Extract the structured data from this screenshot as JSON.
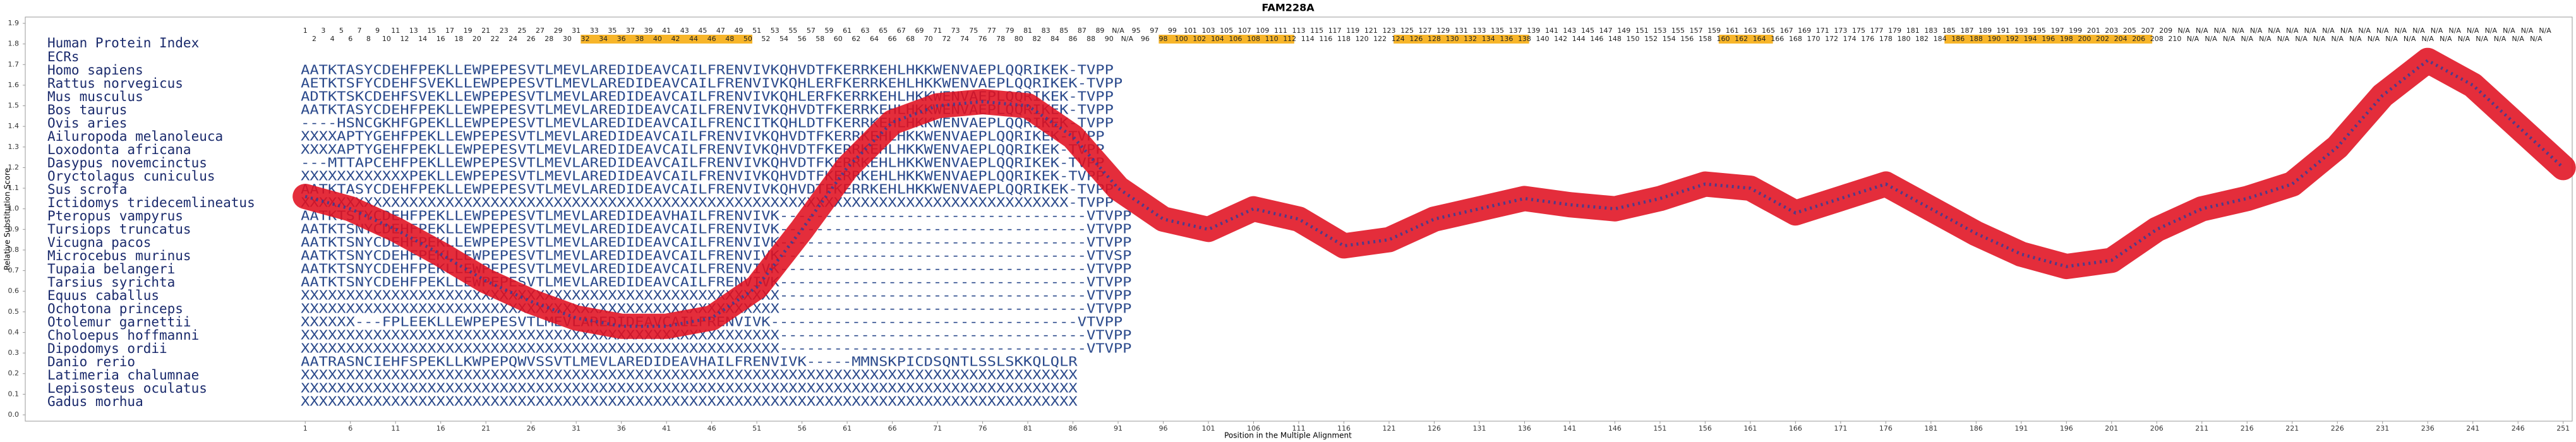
{
  "chart_data": {
    "type": "line",
    "title": "FAM228A",
    "xlabel": "Position in the Multiple Alignment",
    "ylabel": "Relative Substitution Score",
    "xlim": [
      -30,
      252
    ],
    "ylim": [
      0,
      1.9
    ],
    "xticks": [
      1,
      6,
      11,
      16,
      21,
      26,
      31,
      36,
      41,
      46,
      51,
      56,
      61,
      66,
      71,
      76,
      81,
      86,
      91,
      96,
      101,
      106,
      111,
      116,
      121,
      126,
      131,
      136,
      141,
      146,
      151,
      156,
      161,
      166,
      171,
      176,
      181,
      186,
      191,
      196,
      201,
      206,
      211,
      216,
      221,
      226,
      231,
      236,
      241,
      246,
      251
    ],
    "yticks": [
      {
        "value": 0,
        "label": "0.0"
      },
      0.1,
      0.2,
      0.3,
      0.4,
      0.5,
      0.6,
      0.7,
      0.8,
      0.9,
      {
        "value": 1,
        "label": "1.0"
      },
      1.1,
      1.2,
      1.3,
      1.4,
      1.5,
      1.6,
      1.7,
      1.8,
      1.9
    ],
    "x": [
      1,
      6,
      11,
      16,
      21,
      26,
      31,
      36,
      41,
      46,
      51,
      56,
      61,
      66,
      71,
      76,
      81,
      86,
      91,
      96,
      101,
      106,
      111,
      116,
      121,
      126,
      131,
      136,
      141,
      146,
      151,
      156,
      161,
      166,
      171,
      176,
      181,
      186,
      191,
      196,
      201,
      206,
      211,
      216,
      221,
      226,
      231,
      236,
      241,
      246,
      251
    ],
    "series": [
      {
        "color": "#e01020",
        "dot_color": "#2a3f9e",
        "values": [
          1.06,
          1.0,
          0.9,
          0.78,
          0.65,
          0.55,
          0.47,
          0.43,
          0.43,
          0.47,
          0.62,
          0.9,
          1.2,
          1.42,
          1.5,
          1.52,
          1.5,
          1.35,
          1.1,
          0.95,
          0.9,
          1.0,
          0.95,
          0.82,
          0.85,
          0.95,
          1.0,
          1.05,
          1.02,
          1.0,
          1.05,
          1.12,
          1.1,
          0.98,
          1.05,
          1.12,
          1.0,
          0.88,
          0.78,
          0.72,
          0.75,
          0.9,
          1.0,
          1.05,
          1.12,
          1.3,
          1.55,
          1.72,
          1.6,
          1.4,
          1.2
        ]
      }
    ],
    "index_label": "Human Protein Index",
    "ecr_label": "ECRs",
    "ecr_color": "#f7b52a",
    "ecrs": [
      [
        32,
        50
      ],
      [
        96,
        110
      ],
      [
        122,
        136
      ],
      [
        158,
        163
      ],
      [
        183,
        205
      ]
    ],
    "human_index": [
      1,
      2,
      3,
      4,
      5,
      6,
      7,
      8,
      9,
      10,
      11,
      12,
      13,
      14,
      15,
      16,
      17,
      18,
      19,
      20,
      21,
      22,
      23,
      24,
      25,
      26,
      27,
      28,
      29,
      30,
      31,
      32,
      33,
      34,
      35,
      36,
      37,
      38,
      39,
      40,
      41,
      42,
      43,
      44,
      45,
      46,
      47,
      48,
      49,
      50,
      51,
      52,
      53,
      54,
      55,
      56,
      57,
      58,
      59,
      60,
      61,
      62,
      63,
      64,
      65,
      66,
      67,
      68,
      69,
      70,
      71,
      72,
      73,
      74,
      75,
      76,
      77,
      78,
      79,
      80,
      81,
      82,
      83,
      84,
      85,
      86,
      87,
      88,
      89,
      90,
      "N/A",
      "N/A",
      95,
      96,
      97,
      98,
      99,
      100,
      101,
      102,
      103,
      104,
      105,
      106,
      107,
      108,
      109,
      110,
      111,
      112,
      113,
      114,
      115,
      116,
      117,
      118,
      119,
      120,
      121,
      122,
      123,
      124,
      125,
      126,
      127,
      128,
      129,
      130,
      131,
      132,
      133,
      134,
      135,
      136,
      137,
      138,
      139,
      140,
      141,
      142,
      143,
      144,
      145,
      146,
      147,
      148,
      149,
      150,
      151,
      152,
      153,
      154,
      155,
      156,
      157,
      158,
      159,
      160,
      161,
      162,
      163,
      164,
      165,
      166,
      167,
      168,
      169,
      170,
      171,
      172,
      173,
      174,
      175,
      176,
      177,
      178,
      179,
      180,
      181,
      182,
      183,
      184,
      185,
      186,
      187,
      188,
      189,
      190,
      191,
      192,
      193,
      194,
      195,
      196,
      197,
      198,
      199,
      200,
      201,
      202,
      203,
      204,
      205,
      206,
      207,
      208,
      209,
      210,
      "N/A",
      "N/A",
      "N/A",
      "N/A",
      "N/A",
      "N/A",
      "N/A",
      "N/A",
      "N/A",
      "N/A",
      "N/A",
      "N/A",
      "N/A",
      "N/A",
      "N/A",
      "N/A",
      "N/A",
      "N/A",
      "N/A",
      "N/A",
      "N/A",
      "N/A",
      "N/A",
      "N/A",
      "N/A",
      "N/A",
      "N/A",
      "N/A",
      "N/A",
      "N/A",
      "N/A",
      "N/A",
      "N/A",
      "N/A",
      "N/A",
      "N/A",
      "N/A",
      "N/A",
      "N/A",
      "N/A",
      "N/A"
    ],
    "alignment": [
      {
        "species": "Homo sapiens",
        "sequence": "AATKTASYCDEHFPEKLLEWPEPESVTLMEVLAREDIDEAVCAILFRENVIVKQHVDTFKERRKEHLHKKWENVAEPLQQRIKEK-TVPP"
      },
      {
        "species": "Rattus norvegicus",
        "sequence": "AETKTSFYCDEHFSVEKLLEWPEPESVTLMEVLAREDIDEAVCAILFRENVIVKQHLERFKERRKEHLHKKWENVAEPLQQRIKEK-TVPP"
      },
      {
        "species": "Mus musculus",
        "sequence": "ADTKTSKCDEHFSVEKLLEWPEPESVTLMEVLAREDIDEAVCAILFRENVIVKQHLERFKERRKEHLHKKWENVAEPLQQRIKEK-TVPP"
      },
      {
        "species": "Bos taurus",
        "sequence": "AATKTASYCDEHFPEKLLEWPEPESVTLMEVLAREDIDEAVCAILFRENVIVKQHVDTFKERRKEHLHKKWENVAEPLQQRIKEK-TVPP"
      },
      {
        "species": "Ovis aries",
        "sequence": "----HSNCGKHFGPEKLLEWPEPESVTLMEVLAREDIDEAVCAILFRENCITKQHLDTFKERRKEHLHKKWENVAEPLQQRIKEK-TVPP"
      },
      {
        "species": "Ailuropoda melanoleuca",
        "sequence": "XXXXAPTYGEHFPEKLLEWPEPESVTLMEVLAREDIDEAVCAILFRENVIVKQHVDTFKERRKEHLHKKWENVAEPLQQRIKEK-TVPP"
      },
      {
        "species": "Loxodonta africana",
        "sequence": "XXXXAPTYGEHFPEKLLEWPEPESVTLMEVLAREDIDEAVCAILFRENVIVKQHVDTFKERRKEHLHKKWENVAEPLQQRIKEK-TVPP"
      },
      {
        "species": "Dasypus novemcinctus",
        "sequence": "---MTTAPCEHFPEKLLEWPEPESVTLMEVLAREDIDEAVCAILFRENVIVKQHVDTFKERRKEHLHKKWENVAEPLQQRIKEK-TVPP"
      },
      {
        "species": "Oryctolagus cuniculus",
        "sequence": "XXXXXXXXXXXXPEKLLEWPEPESVTLMEVLAREDIDEAVCAILFRENVIVKQHVDTFKERRKEHLHKKWENVAEPLQQRIKEK-TVPP"
      },
      {
        "species": "Sus scrofa",
        "sequence": "AATKTASYCDEHFPEKLLEWPEPESVTLMEVLAREDIDEAVCAILFRENVIVKQHVDTFKERRKEHLHKKWENVAEPLQQRIKEK-TVPP"
      },
      {
        "species": "Ictidomys tridecemlineatus",
        "sequence": "XXXXXXXXXXXXXXXXXXXXXXXXXXXXXXXXXXXXXXXXXXXXXXXXXXXXXXXXXXXXXXXXXXXXXXXXXXXXXXXXXXXXX-TVPP"
      },
      {
        "species": "Pteropus vampyrus",
        "sequence": "AATKTSTYCDEHFPEKLLEWPEPESVTLMEVLAREDIDEAVHAILFRENVIVK----------------------------------VTVPP"
      },
      {
        "species": "Tursiops truncatus",
        "sequence": "AATKTSNYCDEHFPEKLLEWPEPESVTLMEVLAREDIDEAVCAILFRENVIVK----------------------------------VTVPP"
      },
      {
        "species": "Vicugna pacos",
        "sequence": "AATKTSNYCDEHFPEKLLEWPEPESVTLMEVLAREDIDEAVCAILFRENVIVK----------------------------------VTVPP"
      },
      {
        "species": "Microcebus murinus",
        "sequence": "AATKTSNYCDEHFPEKLLEWPEPESVTLMEVLAREDIDEAVCAILFRENVIVK----------------------------------VTVSP"
      },
      {
        "species": "Tupaia belangeri",
        "sequence": "AATKTSNYCDEHFPEKLLEWPEPESVTLMEVLAREDIDEAVCAILFRENVIVK----------------------------------VTVPP"
      },
      {
        "species": "Tarsius syrichta",
        "sequence": "AATKTSNYCDEHFPEKLLEWPEPESVTLMEVLAREDIDEAVCAILFRENVIVK----------------------------------VTVPP"
      },
      {
        "species": "Equus caballus",
        "sequence": "XXXXXXXXXXXXXXXXXXXXXXXXXXXXXXXXXXXXXXXXXXXXXXXXXXXXX----------------------------------VTVPP"
      },
      {
        "species": "Ochotona princeps",
        "sequence": "XXXXXXXXXXXXXXXXXXXXXXXXXXXXXXXXXXXXXXXXXXXXXXXXXXXXX----------------------------------VTVPP"
      },
      {
        "species": "Otolemur garnettii",
        "sequence": "XXXXXX---FPLEEKLLEWPEPESVTLMEVLAREDIDEAVCAILFRENVIVK----------------------------------VTVPP"
      },
      {
        "species": "Choloepus hoffmanni",
        "sequence": "XXXXXXXXXXXXXXXXXXXXXXXXXXXXXXXXXXXXXXXXXXXXXXXXXXXXX----------------------------------VTVPP"
      },
      {
        "species": "Dipodomys ordii",
        "sequence": "XXXXXXXXXXXXXXXXXXXXXXXXXXXXXXXXXXXXXXXXXXXXXXXXXXXXX----------------------------------VTVPP"
      },
      {
        "species": "Danio rerio",
        "sequence": "AATRASNCIEHFSPEKLLKWPEPQWVSSVTLMEVLAREDIDEAVHAILFRENVIVK-----MMNSKPICDSQNTLSSLSKKQLQLR"
      },
      {
        "species": "Latimeria chalumnae",
        "sequence": "XXXXXXXXXXXXXXXXXXXXXXXXXXXXXXXXXXXXXXXXXXXXXXXXXXXXXXXXXXXXXXXXXXXXXXXXXXXXXXXXXXXXXX"
      },
      {
        "species": "Lepisosteus oculatus",
        "sequence": "XXXXXXXXXXXXXXXXXXXXXXXXXXXXXXXXXXXXXXXXXXXXXXXXXXXXXXXXXXXXXXXXXXXXXXXXXXXXXXXXXXXXXX"
      },
      {
        "species": "Gadus morhua",
        "sequence": "XXXXXXXXXXXXXXXXXXXXXXXXXXXXXXXXXXXXXXXXXXXXXXXXXXXXXXXXXXXXXXXXXXXXXXXXXXXXXXXXXXXXXX"
      }
    ]
  }
}
